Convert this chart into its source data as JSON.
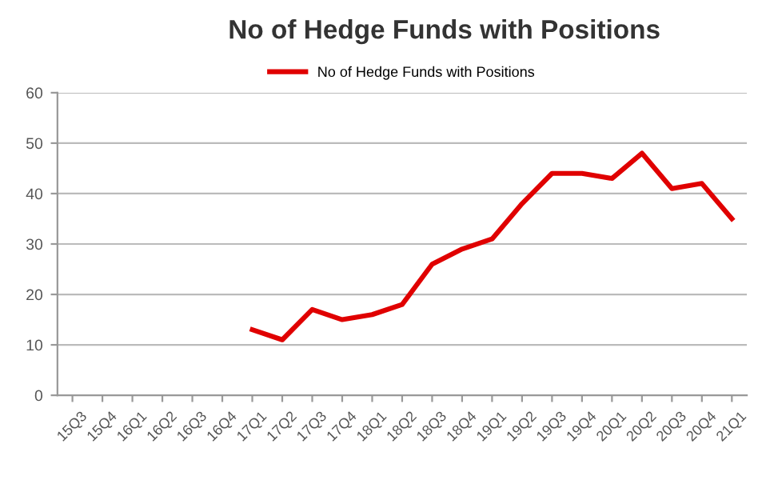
{
  "chart_data": {
    "type": "line",
    "title": "No of Hedge Funds with Positions",
    "categories": [
      "15Q3",
      "15Q4",
      "16Q1",
      "16Q2",
      "16Q3",
      "16Q4",
      "17Q1",
      "17Q2",
      "17Q3",
      "17Q4",
      "18Q1",
      "18Q2",
      "18Q3",
      "18Q4",
      "19Q1",
      "19Q2",
      "19Q3",
      "19Q4",
      "20Q1",
      "20Q2",
      "20Q3",
      "20Q4",
      "21Q1"
    ],
    "series": [
      {
        "name": "No of Hedge Funds with Positions",
        "color": "#e00000",
        "values": [
          null,
          null,
          null,
          null,
          null,
          null,
          13,
          11,
          17,
          15,
          16,
          18,
          26,
          29,
          31,
          38,
          44,
          44,
          43,
          48,
          41,
          42,
          35
        ]
      }
    ],
    "ylim": [
      0,
      60
    ],
    "yticks": [
      0,
      10,
      20,
      30,
      40,
      50,
      60
    ],
    "grid": "y",
    "legend": "top",
    "marker": "none",
    "line_style": "solid"
  }
}
